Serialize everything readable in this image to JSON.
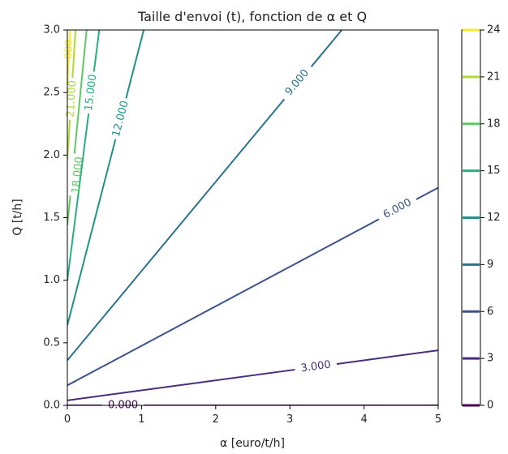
{
  "chart_data": {
    "type": "contour",
    "title": "Taille d'envoi (t), fonction de α et Q",
    "xlabel": "α [euro/t/h]",
    "ylabel": "Q [t/h]",
    "xlim": [
      0,
      5
    ],
    "ylim": [
      0,
      3
    ],
    "x_ticks": [
      0,
      1,
      2,
      3,
      4,
      5
    ],
    "y_ticks": [
      0.0,
      0.5,
      1.0,
      1.5,
      2.0,
      2.5,
      3.0
    ],
    "x_tick_labels": [
      "0",
      "1",
      "2",
      "3",
      "4",
      "5"
    ],
    "y_tick_labels": [
      "0.0",
      "0.5",
      "1.0",
      "1.5",
      "2.0",
      "2.5",
      "3.0"
    ],
    "colorbar": {
      "ticks": [
        0,
        3,
        6,
        9,
        12,
        15,
        18,
        21,
        24
      ],
      "tick_labels": [
        "0",
        "3",
        "6",
        "9",
        "12",
        "15",
        "18",
        "21",
        "24"
      ],
      "range": [
        0,
        24
      ]
    },
    "levels": [
      {
        "level": 0,
        "label": "0.000",
        "color": "#440154",
        "line": [
          [
            0,
            0.0
          ],
          [
            5,
            0.0
          ]
        ],
        "label_pos": [
          0.75,
          0.0
        ],
        "label_visible": true
      },
      {
        "level": 3,
        "label": "3.000",
        "color": "#472d7b",
        "line": [
          [
            0,
            0.04
          ],
          [
            5,
            0.44
          ]
        ],
        "label_pos": [
          3.35,
          0.308
        ],
        "label_visible": true
      },
      {
        "level": 6,
        "label": "6.000",
        "color": "#3b528b",
        "line": [
          [
            0,
            0.16
          ],
          [
            5,
            1.74
          ]
        ],
        "label_pos": [
          4.45,
          1.57
        ],
        "label_visible": true
      },
      {
        "level": 9,
        "label": "9.000",
        "color": "#2c728e",
        "line": [
          [
            0,
            0.36
          ],
          [
            3.7,
            3.0
          ]
        ],
        "label_pos": [
          3.1,
          2.58
        ],
        "label_visible": true
      },
      {
        "level": 12,
        "label": "12.000",
        "color": "#21918c",
        "line": [
          [
            0,
            0.64
          ],
          [
            1.03,
            3.0
          ]
        ],
        "label_pos": [
          0.72,
          2.29
        ],
        "label_visible": true
      },
      {
        "level": 15,
        "label": "15.000",
        "color": "#28ae80",
        "line": [
          [
            0,
            1.0
          ],
          [
            0.43,
            3.0
          ]
        ],
        "label_pos": [
          0.32,
          2.5
        ],
        "label_visible": true
      },
      {
        "level": 18,
        "label": "18.000",
        "color": "#5ec962",
        "line": [
          [
            0,
            1.44
          ],
          [
            0.26,
            3.0
          ]
        ],
        "label_pos": [
          0.14,
          1.84
        ],
        "label_visible": true
      },
      {
        "level": 21,
        "label": "21.000",
        "color": "#addc30",
        "line": [
          [
            0,
            1.96
          ],
          [
            0.11,
            3.0
          ]
        ],
        "label_pos": [
          0.06,
          2.45
        ],
        "label_visible": true
      },
      {
        "level": 24,
        "label": "24.000",
        "color": "#fde725",
        "line": [
          [
            0,
            2.56
          ],
          [
            0.04,
            3.0
          ]
        ],
        "label_pos": [
          0.02,
          2.78
        ],
        "label_visible": false
      }
    ]
  }
}
